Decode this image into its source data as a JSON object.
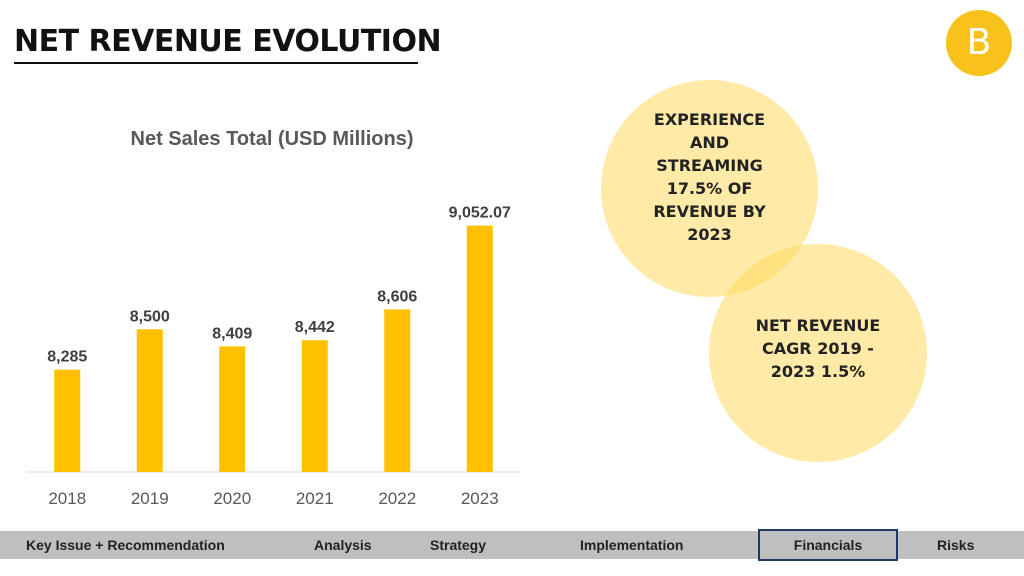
{
  "page": {
    "title": "NET REVENUE EVOLUTION",
    "logo_letter": "B"
  },
  "chart_data": {
    "type": "bar",
    "title": "Net Sales Total (USD Millions)",
    "categories": [
      "2018",
      "2019",
      "2020",
      "2021",
      "2022",
      "2023"
    ],
    "values": [
      8285,
      8500,
      8409,
      8442,
      8606,
      9052.07
    ],
    "value_labels": [
      "8,285",
      "8,500",
      "8,409",
      "8,442",
      "8,606",
      "9,052.07"
    ],
    "xlabel": "",
    "ylabel": "",
    "ylim": [
      7740,
      9210
    ],
    "grid": false,
    "legend": "none",
    "bar_color": "#ffc000"
  },
  "callouts": [
    "EXPERIENCE\nAND\nSTREAMING\n17.5% OF\nREVENUE BY\n2023",
    "NET REVENUE\nCAGR 2019 -\n2023 1.5%"
  ],
  "nav": {
    "items": [
      "Key Issue + Recommendation",
      "Analysis",
      "Strategy",
      "Implementation",
      "Financials",
      "Risks"
    ],
    "active": "Financials",
    "active_border_color": "#1f3864"
  }
}
